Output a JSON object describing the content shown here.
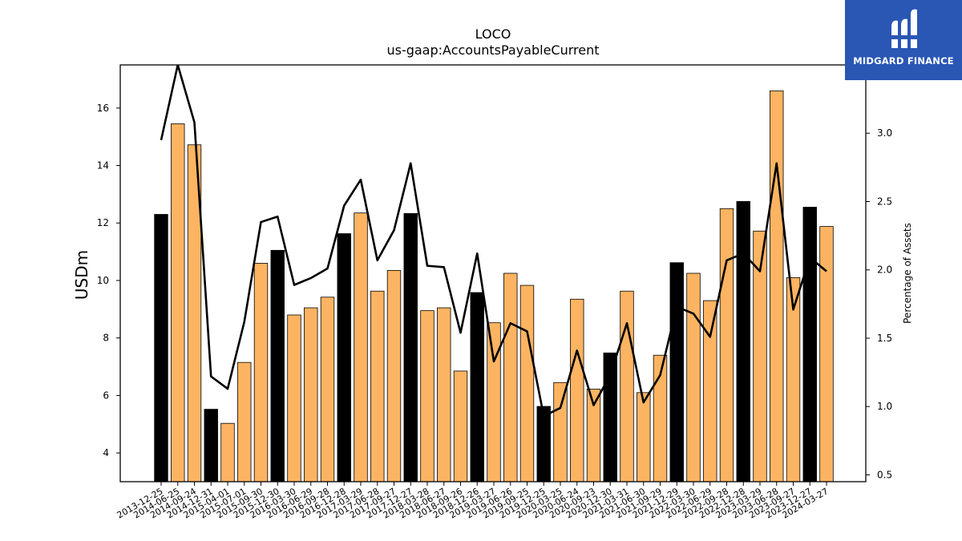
{
  "chart_data": {
    "type": "bar",
    "title": "LOCO",
    "subtitle": "us-gaap:AccountsPayableCurrent",
    "ylabel": "USDm",
    "y2label": "Percentage of Assets",
    "ylim": [
      3.0,
      17.5
    ],
    "y2lim": [
      0.45,
      3.5
    ],
    "yticks": [
      4,
      6,
      8,
      10,
      12,
      14,
      16
    ],
    "y2ticks": [
      0.5,
      1.0,
      1.5,
      2.0,
      2.5,
      3.0
    ],
    "y2tick_labels": [
      "0.5",
      "1.0",
      "1.5",
      "2.0",
      "2.5",
      "3.0"
    ],
    "categories": [
      "2013-12-25",
      "2014-06-25",
      "2014-09-24",
      "2014-12-31",
      "2015-04-01",
      "2015-07-01",
      "2015-09-30",
      "2015-12-30",
      "2016-03-30",
      "2016-06-29",
      "2016-09-28",
      "2016-12-28",
      "2017-03-29",
      "2017-06-28",
      "2017-09-27",
      "2017-12-27",
      "2018-03-28",
      "2018-06-27",
      "2018-09-26",
      "2018-12-26",
      "2019-03-27",
      "2019-06-26",
      "2019-09-25",
      "2019-12-25",
      "2020-03-25",
      "2020-06-24",
      "2020-09-23",
      "2020-12-30",
      "2021-03-31",
      "2021-06-30",
      "2021-09-29",
      "2021-12-29",
      "2022-03-30",
      "2022-06-29",
      "2022-09-28",
      "2022-12-28",
      "2023-03-29",
      "2023-06-28",
      "2023-09-27",
      "2023-12-27",
      "2024-03-27"
    ],
    "series": [
      {
        "type": "bar",
        "values": [
          12.3,
          15.45,
          14.72,
          5.52,
          5.03,
          7.15,
          10.6,
          11.05,
          8.8,
          9.05,
          9.42,
          11.63,
          12.35,
          9.63,
          10.35,
          12.33,
          8.95,
          9.05,
          6.85,
          9.58,
          8.53,
          10.25,
          9.83,
          5.62,
          6.45,
          9.35,
          6.22,
          7.48,
          9.63,
          6.1,
          7.4,
          10.62,
          10.25,
          9.3,
          12.5,
          12.75,
          11.72,
          16.6,
          10.1,
          12.55,
          11.88
        ],
        "highlight": [
          true,
          false,
          false,
          true,
          false,
          false,
          false,
          true,
          false,
          false,
          false,
          true,
          false,
          false,
          false,
          true,
          false,
          false,
          false,
          true,
          false,
          false,
          false,
          true,
          false,
          false,
          false,
          true,
          false,
          false,
          false,
          true,
          false,
          false,
          false,
          true,
          false,
          false,
          false,
          true,
          false
        ]
      },
      {
        "type": "line",
        "axis": "right",
        "values": [
          2.95,
          3.5,
          3.08,
          1.22,
          1.13,
          1.62,
          2.35,
          2.39,
          1.89,
          1.94,
          2.01,
          2.47,
          2.66,
          2.07,
          2.29,
          2.78,
          2.03,
          2.02,
          1.54,
          2.12,
          1.33,
          1.61,
          1.55,
          0.93,
          0.99,
          1.41,
          1.01,
          1.23,
          1.61,
          1.03,
          1.23,
          1.73,
          1.68,
          1.51,
          2.07,
          2.12,
          1.99,
          2.78,
          1.71,
          2.09,
          1.99
        ]
      }
    ],
    "colors": {
      "bar": "#fdb462",
      "bar_highlight": "#000000",
      "line": "#000000"
    }
  },
  "logo": {
    "text": "MIDGARD FINANCE",
    "background": "#2a56b4"
  }
}
